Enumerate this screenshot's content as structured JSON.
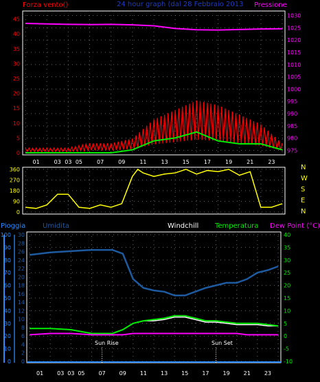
{
  "header": {
    "left": "Forza vento()",
    "center": "24 hour graph (dal 28 Febbraio 2013",
    "right": "Pressione"
  },
  "labels": {
    "pioggia": "Pioggia",
    "umidita": "Umidita",
    "windchill": "Windchill",
    "temperatura": "Temperatura",
    "dewpoint": "Dew Point (°C)",
    "sunrise": "Sun Rise",
    "sunset": "Sun Set"
  },
  "compass": [
    "N",
    "W",
    "S",
    "E",
    "N"
  ],
  "colors": {
    "wind": "#ff0000",
    "wind_avg": "#00ee00",
    "pressure": "#ff00ff",
    "direction": "#ffff00",
    "humidity": "#1e5aa0",
    "temperature": "#00ee00",
    "windchill": "#ffffff",
    "dewpoint": "#ff00ff",
    "rain": "#2a8cff"
  },
  "chart_data": [
    {
      "type": "line",
      "name": "wind-pressure",
      "x_ticks": [
        "01",
        "03",
        "03",
        "05",
        "07",
        "09",
        "11",
        "13",
        "15",
        "17",
        "19",
        "21",
        "23"
      ],
      "y_left_ticks": [
        0,
        5,
        10,
        15,
        20,
        25,
        30,
        35,
        40,
        45
      ],
      "y_right_ticks": [
        975,
        980,
        985,
        990,
        995,
        1000,
        1005,
        1010,
        1015,
        1020,
        1025,
        1030
      ],
      "ylim_left": [
        0,
        47
      ],
      "ylim_right": [
        974,
        1031
      ],
      "x_hours": [
        0,
        2,
        4,
        6,
        8,
        10,
        12,
        14,
        16,
        18,
        20,
        22,
        24
      ],
      "wind_gust": [
        1,
        1,
        1,
        2,
        2,
        3,
        7,
        9,
        11,
        10,
        8,
        6,
        2
      ],
      "wind_avg": [
        0,
        0,
        0,
        0,
        0,
        1,
        4,
        5,
        7,
        4,
        3,
        3,
        1
      ],
      "pressure_x": [
        0,
        2,
        4,
        6,
        8,
        10,
        12,
        14,
        16,
        18,
        20,
        22,
        24
      ],
      "pressure": [
        1026.8,
        1026.6,
        1026.4,
        1026.3,
        1026.4,
        1026.2,
        1025.8,
        1024.7,
        1024.2,
        1024.1,
        1024.3,
        1024.5,
        1024.6
      ]
    },
    {
      "type": "line",
      "name": "wind-direction",
      "y_ticks": [
        0,
        90,
        180,
        270,
        360
      ],
      "ylim": [
        0,
        360
      ],
      "x": [
        0,
        1,
        2,
        3,
        4,
        5,
        6,
        7,
        8,
        9,
        10,
        10.5,
        11,
        12,
        13,
        14,
        15,
        16,
        17,
        18,
        19,
        20,
        21,
        22,
        23,
        24
      ],
      "direction": [
        40,
        30,
        60,
        150,
        150,
        40,
        30,
        60,
        40,
        70,
        300,
        360,
        330,
        300,
        320,
        330,
        360,
        320,
        350,
        340,
        360,
        310,
        340,
        40,
        40,
        70
      ]
    },
    {
      "type": "line",
      "name": "humidity-temperature",
      "y_humidity_ticks": [
        0,
        10,
        20,
        30,
        40,
        50,
        60,
        70,
        80,
        90,
        100
      ],
      "y_rain_ticks": [
        0,
        2,
        4,
        6,
        8,
        10,
        12,
        14,
        16,
        18,
        20,
        22,
        24,
        26,
        28,
        30
      ],
      "y_temp_ticks": [
        -10,
        -5,
        0,
        5,
        10,
        15,
        20,
        25,
        30,
        35,
        40
      ],
      "humidity_lim": [
        0,
        100
      ],
      "temp_lim": [
        -10,
        40
      ],
      "x": [
        0,
        2,
        4,
        6,
        8,
        9,
        10,
        11,
        12,
        13,
        14,
        15,
        16,
        17,
        18,
        19,
        20,
        21,
        22,
        23,
        24
      ],
      "humidity": [
        84,
        86,
        87,
        88,
        88,
        85,
        65,
        58,
        56,
        55,
        52,
        52,
        55,
        58,
        60,
        62,
        62,
        65,
        70,
        72,
        75
      ],
      "temperature": [
        3,
        3,
        2.5,
        1,
        1,
        2.5,
        5,
        6,
        6.5,
        7,
        8,
        8,
        7,
        6,
        6,
        5.5,
        5,
        5,
        5,
        4.5,
        4
      ],
      "windchill": [
        3,
        3,
        2.5,
        1,
        1,
        2.5,
        5,
        6,
        6,
        6.5,
        7.5,
        7.5,
        6.5,
        5.5,
        5.5,
        5,
        4.5,
        4.5,
        4.5,
        4,
        4
      ],
      "dewpoint": [
        0.5,
        1,
        1,
        0.5,
        0.5,
        0.5,
        1,
        1,
        1,
        1,
        1,
        1,
        1,
        1,
        1,
        1,
        1,
        0.5,
        0.5,
        0.5,
        0.5
      ],
      "rain_total": 0,
      "sunrise_hour": 7,
      "sunset_hour": 18
    }
  ]
}
